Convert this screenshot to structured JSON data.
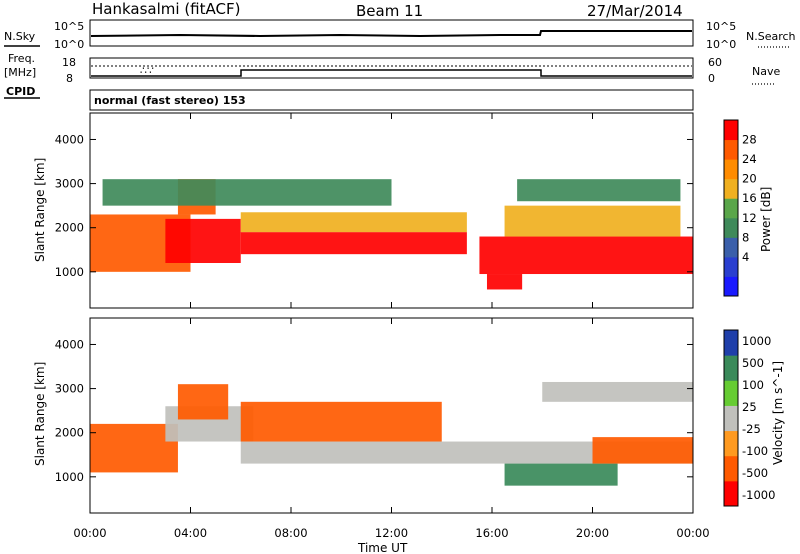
{
  "header": {
    "station": "Hankasalmi (fitACF)",
    "beam": "Beam 11",
    "date": "27/Mar/2014"
  },
  "mini_panels": {
    "nsky_label": "N.Sky",
    "nsky_ticks": [
      "10^5",
      "10^0"
    ],
    "nsearch_label": "N.Search",
    "nsearch_ticks": [
      "10^5",
      "10^0"
    ],
    "freq_label_1": "Freq.",
    "freq_label_2": "[MHz]",
    "freq_ticks": [
      "18",
      "8"
    ],
    "nave_label": "Nave",
    "nave_ticks": [
      "60",
      "0"
    ],
    "cpid_label": "CPID",
    "cpid_text": "normal (fast stereo) 153"
  },
  "colors": {
    "power": [
      "#1a1aff",
      "#2a3fd0",
      "#3a5faa",
      "#3f8a5a",
      "#5aa64a",
      "#f0b020",
      "#ff8c00",
      "#ff5a00",
      "#ff0000"
    ],
    "velocity_neg": [
      "#ff0000",
      "#ff5a00",
      "#ff9a20"
    ],
    "velocity_mid": "#c0c0bc",
    "velocity_pos": [
      "#66cc33",
      "#3a8a5a",
      "#1f3faa"
    ]
  },
  "chart_data": [
    {
      "type": "heatmap",
      "title": "Power",
      "xlabel": "Time UT",
      "ylabel": "Slant Range [km]",
      "colorbar_label": "Power [dB]",
      "colorbar_ticks": [
        "28",
        "24",
        "20",
        "16",
        "12",
        "8",
        "4"
      ],
      "x_ticks": [
        "00:00",
        "04:00",
        "08:00",
        "12:00",
        "16:00",
        "20:00",
        "00:00"
      ],
      "y_ticks": [
        "4000",
        "3000",
        "2000",
        "1000"
      ],
      "xlim": [
        0,
        24
      ],
      "ylim": [
        180,
        4600
      ],
      "bands": [
        {
          "t": [
            0,
            4.0
          ],
          "r": [
            1000,
            2300
          ],
          "level": 7
        },
        {
          "t": [
            3.0,
            6.0
          ],
          "r": [
            1200,
            2200
          ],
          "level": 8
        },
        {
          "t": [
            3.5,
            5.0
          ],
          "r": [
            2300,
            3100
          ],
          "level": 7
        },
        {
          "t": [
            6.0,
            15.0
          ],
          "r": [
            1400,
            1900
          ],
          "level": 8
        },
        {
          "t": [
            6.0,
            15.0
          ],
          "r": [
            1900,
            2350
          ],
          "level": 5
        },
        {
          "t": [
            0.5,
            12.0
          ],
          "r": [
            2500,
            3100
          ],
          "level": 3
        },
        {
          "t": [
            15.5,
            24.0
          ],
          "r": [
            950,
            1800
          ],
          "level": 8
        },
        {
          "t": [
            16.5,
            23.5
          ],
          "r": [
            1800,
            2500
          ],
          "level": 5
        },
        {
          "t": [
            17.0,
            23.5
          ],
          "r": [
            2600,
            3100
          ],
          "level": 3
        },
        {
          "t": [
            15.8,
            17.2
          ],
          "r": [
            600,
            950
          ],
          "level": 8
        }
      ]
    },
    {
      "type": "heatmap",
      "title": "Velocity",
      "xlabel": "Time UT",
      "ylabel": "Slant Range [km]",
      "colorbar_label": "Velocity [m s^-1]",
      "colorbar_ticks": [
        "1000",
        "500",
        "100",
        "25",
        "-25",
        "-100",
        "-500",
        "-1000"
      ],
      "x_ticks": [
        "00:00",
        "04:00",
        "08:00",
        "12:00",
        "16:00",
        "20:00",
        "00:00"
      ],
      "y_ticks": [
        "4000",
        "3000",
        "2000",
        "1000"
      ],
      "xlim": [
        0,
        24
      ],
      "ylim": [
        180,
        4600
      ],
      "bands": [
        {
          "t": [
            0,
            3.5
          ],
          "r": [
            1100,
            2200
          ],
          "vel": -300
        },
        {
          "t": [
            3.0,
            6.5
          ],
          "r": [
            1800,
            2600
          ],
          "vel": 0
        },
        {
          "t": [
            3.5,
            5.5
          ],
          "r": [
            2300,
            3100
          ],
          "vel": -400
        },
        {
          "t": [
            6.0,
            24.0
          ],
          "r": [
            1300,
            1800
          ],
          "vel": 0
        },
        {
          "t": [
            6.0,
            14.0
          ],
          "r": [
            1800,
            2700
          ],
          "vel": -200
        },
        {
          "t": [
            16.5,
            21.0
          ],
          "r": [
            800,
            1300
          ],
          "vel": 200
        },
        {
          "t": [
            20.0,
            24.0
          ],
          "r": [
            1300,
            1900
          ],
          "vel": -250
        },
        {
          "t": [
            18.0,
            24.0
          ],
          "r": [
            2700,
            3150
          ],
          "vel": 0
        }
      ]
    }
  ]
}
